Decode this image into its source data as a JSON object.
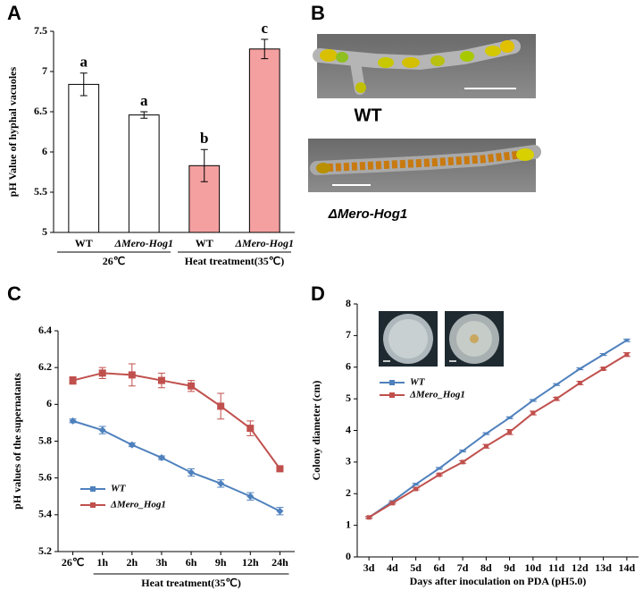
{
  "chart_data": [
    {
      "type": "bar",
      "panel": "A",
      "ylabel": "pH Value of hyphal vacuoles",
      "categories": [
        "WT",
        "ΔMero-Hog1",
        "WT",
        "ΔMero-Hog1"
      ],
      "groups": [
        "26℃",
        "Heat treatment(35℃)"
      ],
      "values": [
        6.84,
        6.46,
        5.83,
        7.28
      ],
      "errors": [
        0.14,
        0.04,
        0.2,
        0.12
      ],
      "annotations": [
        "a",
        "a",
        "b",
        "c"
      ],
      "colors": [
        "#ffffff",
        "#ffffff",
        "#f4a0a0",
        "#f4a0a0"
      ],
      "ylim": [
        5,
        7.5
      ],
      "yticks": [
        5,
        5.5,
        6,
        6.5,
        7,
        7.5
      ]
    },
    {
      "type": "line",
      "panel": "C",
      "ylabel": "pH values of the supernatants",
      "categories": [
        "26℃",
        "1h",
        "2h",
        "3h",
        "6h",
        "9h",
        "12h",
        "24h"
      ],
      "x_group_label": "Heat treatment(35℃)",
      "series": [
        {
          "name": "WT",
          "color": "#4f81bd",
          "marker": "diamond",
          "values": [
            5.91,
            5.86,
            5.78,
            5.71,
            5.63,
            5.57,
            5.5,
            5.42
          ],
          "errors": [
            0.01,
            0.02,
            0.01,
            0.01,
            0.02,
            0.02,
            0.02,
            0.02
          ]
        },
        {
          "name": "ΔMero_Hog1",
          "color": "#c0504d",
          "marker": "square",
          "values": [
            6.13,
            6.17,
            6.16,
            6.13,
            6.1,
            5.99,
            5.87,
            5.65
          ],
          "errors": [
            0.02,
            0.03,
            0.06,
            0.04,
            0.03,
            0.07,
            0.04,
            0.01
          ]
        }
      ],
      "legend": "lower left",
      "ylim": [
        5.2,
        6.4
      ],
      "yticks": [
        5.2,
        5.4,
        5.6,
        5.8,
        6,
        6.2,
        6.4
      ]
    },
    {
      "type": "line",
      "panel": "D",
      "ylabel": "Colony diameter (cm)",
      "xlabel": "Days after inoculation on PDA (pH5.0)",
      "categories": [
        "3d",
        "4d",
        "5d",
        "6d",
        "7d",
        "8d",
        "9d",
        "10d",
        "11d",
        "12d",
        "13d",
        "14d"
      ],
      "series": [
        {
          "name": "WT",
          "color": "#4f81bd",
          "marker": "dash",
          "values": [
            1.25,
            1.75,
            2.3,
            2.8,
            3.35,
            3.9,
            4.4,
            4.95,
            5.45,
            5.95,
            6.4,
            6.85
          ],
          "errors": [
            0.03,
            0.03,
            0.03,
            0.03,
            0.03,
            0.03,
            0.03,
            0.03,
            0.03,
            0.03,
            0.03,
            0.04
          ]
        },
        {
          "name": "ΔMero_Hog1",
          "color": "#c0504d",
          "marker": "square",
          "values": [
            1.25,
            1.7,
            2.15,
            2.6,
            3.0,
            3.5,
            3.95,
            4.55,
            5.0,
            5.5,
            5.95,
            6.4
          ],
          "errors": [
            0.03,
            0.03,
            0.03,
            0.03,
            0.04,
            0.06,
            0.08,
            0.06,
            0.05,
            0.05,
            0.04,
            0.06
          ]
        }
      ],
      "legend": "upper left",
      "ylim": [
        0,
        8
      ],
      "yticks": [
        0,
        1,
        2,
        3,
        4,
        5,
        6,
        7,
        8
      ]
    }
  ],
  "panel_b": {
    "panel": "B",
    "captions": [
      "WT",
      "ΔMero-Hog1"
    ]
  }
}
